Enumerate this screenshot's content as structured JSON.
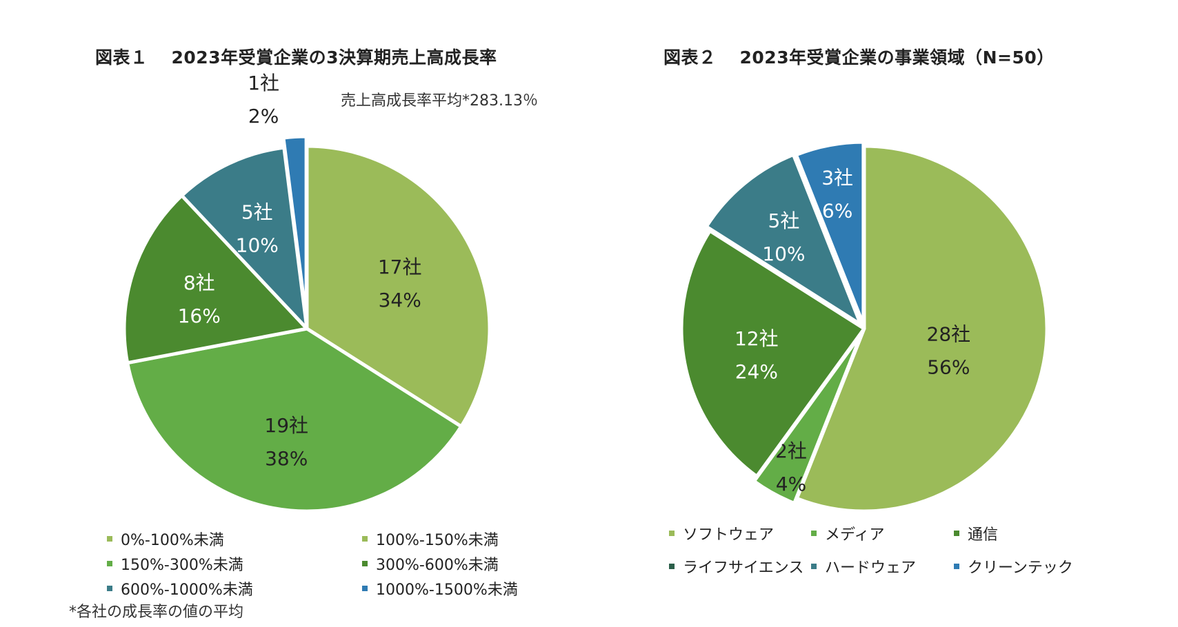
{
  "charts": {
    "chart1": {
      "figure_number": "図表１",
      "title": "2023年受賞企業の3決算期売上高成長率",
      "average_note": "売上高成長率平均*283.13％"
    },
    "chart2": {
      "figure_number": "図表２",
      "title": "2023年受賞企業の事業領域（N=50）"
    }
  },
  "footnote": "*各社の成長率の値の平均",
  "chart_data": [
    {
      "type": "pie",
      "title": "2023年受賞企業の3決算期売上高成長率",
      "legend_position": "bottom",
      "slices": [
        {
          "category": "0%-100%未満",
          "value": 0,
          "count_label": "",
          "percent_label": "",
          "color": "#9bbb59"
        },
        {
          "category": "100%-150%未満",
          "value": 17,
          "count_label": "17社",
          "percent_label": "34%",
          "color": "#9bbb59"
        },
        {
          "category": "150%-300%未満",
          "value": 19,
          "count_label": "19社",
          "percent_label": "38%",
          "color": "#63ad47"
        },
        {
          "category": "300%-600%未満",
          "value": 8,
          "count_label": "8社",
          "percent_label": "16%",
          "color": "#4b8a2f"
        },
        {
          "category": "600%-1000%未満",
          "value": 5,
          "count_label": "5社",
          "percent_label": "10%",
          "color": "#3b7c88"
        },
        {
          "category": "1000%-1500%未満",
          "value": 1,
          "count_label": "1社",
          "percent_label": "2%",
          "color": "#2f7bb3"
        }
      ]
    },
    {
      "type": "pie",
      "title": "2023年受賞企業の事業領域（N=50）",
      "legend_position": "bottom",
      "slices": [
        {
          "category": "ソフトウェア",
          "value": 28,
          "count_label": "28社",
          "percent_label": "56%",
          "color": "#9bbb59"
        },
        {
          "category": "メディア",
          "value": 2,
          "count_label": "2社",
          "percent_label": "4%",
          "color": "#63ad47"
        },
        {
          "category": "通信",
          "value": 12,
          "count_label": "12社",
          "percent_label": "24%",
          "color": "#4b8a2f"
        },
        {
          "category": "ライフサイエンス",
          "value": 0,
          "count_label": "",
          "percent_label": "",
          "color": "#2c5f4a"
        },
        {
          "category": "ハードウェア",
          "value": 5,
          "count_label": "5社",
          "percent_label": "10%",
          "color": "#3b7c88"
        },
        {
          "category": "クリーンテック",
          "value": 3,
          "count_label": "3社",
          "percent_label": "6%",
          "color": "#2f7bb3"
        }
      ]
    }
  ]
}
